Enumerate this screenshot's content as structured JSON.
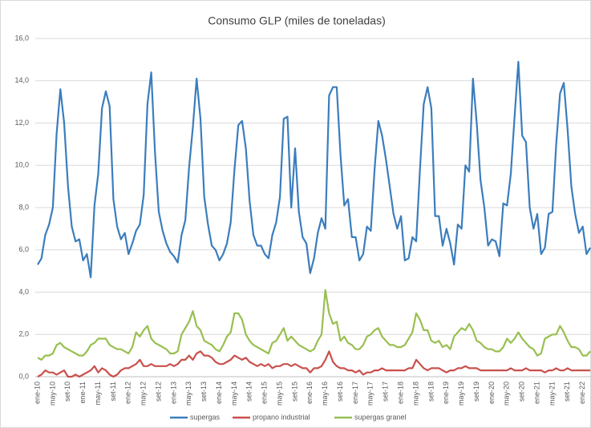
{
  "chart_data": {
    "type": "line",
    "title": "Consumo GLP (miles de toneladas)",
    "categories": [
      "ene-10",
      null,
      null,
      null,
      "may-10",
      null,
      null,
      null,
      "set-10",
      null,
      null,
      null,
      "ene-11",
      null,
      null,
      null,
      "may-11",
      null,
      null,
      null,
      "set-11",
      null,
      null,
      null,
      "ene-12",
      null,
      null,
      null,
      "may-12",
      null,
      null,
      null,
      "set-12",
      null,
      null,
      null,
      "ene-13",
      null,
      null,
      null,
      "may-13",
      null,
      null,
      null,
      "set-13",
      null,
      null,
      null,
      "ene-14",
      null,
      null,
      null,
      "may-14",
      null,
      null,
      null,
      "set-14",
      null,
      null,
      null,
      "ene-15",
      null,
      null,
      null,
      "may-15",
      null,
      null,
      null,
      "set-15",
      null,
      null,
      null,
      "ene-16",
      null,
      null,
      null,
      "may-16",
      null,
      null,
      null,
      "set-16",
      null,
      null,
      null,
      "ene-17",
      null,
      null,
      null,
      "may-17",
      null,
      null,
      null,
      "set-17",
      null,
      null,
      null,
      "ene-18",
      null,
      null,
      null,
      "may-18",
      null,
      null,
      null,
      "set-18",
      null,
      null,
      null,
      "ene-19",
      null,
      null,
      null,
      "may-19",
      null,
      null,
      null,
      "set-19",
      null,
      null,
      null,
      "ene-20",
      null,
      null,
      null,
      "may-20",
      null,
      null,
      null,
      "set-20",
      null,
      null,
      null,
      "ene-21",
      null,
      null,
      null,
      "may-21",
      null,
      null,
      null,
      "set-21",
      null,
      null,
      null,
      "ene-22",
      null,
      null
    ],
    "series": [
      {
        "name": "supergas",
        "color": "#3b7dbd",
        "values": [
          5.3,
          5.6,
          6.7,
          7.2,
          8.0,
          11.5,
          13.6,
          12.0,
          9.0,
          7.1,
          6.4,
          6.5,
          5.5,
          5.8,
          4.7,
          8.1,
          9.6,
          12.7,
          13.5,
          12.8,
          8.4,
          7.1,
          6.5,
          6.8,
          5.8,
          6.3,
          6.9,
          7.2,
          8.6,
          12.9,
          14.4,
          10.6,
          7.8,
          6.9,
          6.3,
          5.9,
          5.7,
          5.4,
          6.7,
          7.4,
          9.9,
          11.8,
          14.1,
          12.2,
          8.5,
          7.2,
          6.2,
          6.0,
          5.5,
          5.8,
          6.3,
          7.3,
          9.8,
          11.9,
          12.1,
          10.8,
          8.3,
          6.7,
          6.2,
          6.2,
          5.8,
          5.6,
          6.7,
          7.3,
          8.5,
          12.2,
          12.3,
          8.0,
          10.8,
          7.8,
          6.6,
          6.3,
          4.9,
          5.6,
          6.8,
          7.5,
          7.0,
          13.3,
          13.7,
          13.7,
          10.5,
          8.1,
          8.4,
          6.6,
          6.6,
          5.5,
          5.8,
          7.1,
          6.9,
          9.8,
          12.1,
          11.4,
          10.3,
          9.0,
          7.7,
          7.0,
          7.6,
          5.5,
          5.6,
          6.6,
          6.4,
          9.8,
          12.9,
          13.7,
          12.7,
          7.6,
          7.6,
          6.2,
          7.0,
          6.3,
          5.3,
          7.2,
          7.0,
          10.0,
          9.7,
          14.1,
          12.0,
          9.3,
          8.0,
          6.2,
          6.5,
          6.4,
          5.7,
          8.2,
          8.1,
          9.6,
          12.3,
          14.9,
          11.4,
          11.1,
          8.0,
          7.0,
          7.7,
          5.8,
          6.1,
          7.7,
          7.8,
          11.0,
          13.4,
          13.9,
          11.7,
          9.0,
          7.7,
          6.8,
          7.1,
          5.8,
          6.1
        ]
      },
      {
        "name": "propano industrial",
        "color": "#c9504c",
        "values": [
          0.0,
          0.1,
          0.3,
          0.2,
          0.2,
          0.1,
          0.2,
          0.3,
          0.0,
          0.0,
          0.1,
          0.0,
          0.1,
          0.2,
          0.3,
          0.5,
          0.2,
          0.4,
          0.3,
          0.1,
          0.0,
          0.1,
          0.3,
          0.4,
          0.4,
          0.5,
          0.6,
          0.8,
          0.5,
          0.5,
          0.6,
          0.5,
          0.5,
          0.5,
          0.5,
          0.6,
          0.5,
          0.6,
          0.8,
          0.8,
          1.0,
          0.8,
          1.1,
          1.2,
          1.0,
          1.0,
          0.9,
          0.7,
          0.6,
          0.6,
          0.7,
          0.8,
          1.0,
          0.9,
          0.8,
          0.9,
          0.7,
          0.6,
          0.5,
          0.6,
          0.5,
          0.6,
          0.4,
          0.5,
          0.5,
          0.6,
          0.6,
          0.5,
          0.6,
          0.5,
          0.4,
          0.4,
          0.2,
          0.4,
          0.4,
          0.5,
          0.8,
          1.2,
          0.7,
          0.5,
          0.4,
          0.4,
          0.3,
          0.3,
          0.2,
          0.3,
          0.1,
          0.2,
          0.2,
          0.3,
          0.3,
          0.4,
          0.3,
          0.3,
          0.3,
          0.3,
          0.3,
          0.3,
          0.4,
          0.4,
          0.8,
          0.6,
          0.4,
          0.3,
          0.4,
          0.4,
          0.4,
          0.3,
          0.2,
          0.3,
          0.3,
          0.4,
          0.4,
          0.5,
          0.4,
          0.4,
          0.4,
          0.3,
          0.3,
          0.3,
          0.3,
          0.3,
          0.3,
          0.3,
          0.3,
          0.4,
          0.3,
          0.3,
          0.3,
          0.4,
          0.3,
          0.3,
          0.3,
          0.3,
          0.2,
          0.3,
          0.3,
          0.4,
          0.3,
          0.3,
          0.4,
          0.3,
          0.3,
          0.3,
          0.3,
          0.3,
          0.3
        ]
      },
      {
        "name": "supergas granel",
        "color": "#98bf50",
        "values": [
          0.9,
          0.8,
          1.0,
          1.0,
          1.1,
          1.5,
          1.6,
          1.4,
          1.3,
          1.2,
          1.1,
          1.0,
          1.0,
          1.2,
          1.5,
          1.6,
          1.8,
          1.8,
          1.8,
          1.5,
          1.4,
          1.3,
          1.3,
          1.2,
          1.1,
          1.4,
          2.1,
          1.9,
          2.2,
          2.4,
          1.8,
          1.6,
          1.5,
          1.4,
          1.3,
          1.1,
          1.1,
          1.2,
          2.0,
          2.3,
          2.6,
          3.1,
          2.4,
          2.2,
          1.7,
          1.6,
          1.5,
          1.3,
          1.2,
          1.5,
          1.9,
          2.1,
          3.0,
          3.0,
          2.7,
          2.0,
          1.7,
          1.5,
          1.4,
          1.3,
          1.2,
          1.1,
          1.6,
          1.7,
          2.0,
          2.3,
          1.7,
          1.9,
          1.7,
          1.5,
          1.4,
          1.3,
          1.2,
          1.3,
          1.7,
          2.0,
          4.1,
          3.0,
          2.5,
          2.6,
          1.7,
          1.9,
          1.6,
          1.5,
          1.3,
          1.3,
          1.5,
          1.9,
          2.0,
          2.2,
          2.3,
          1.9,
          1.7,
          1.5,
          1.5,
          1.4,
          1.4,
          1.5,
          1.8,
          2.1,
          3.0,
          2.7,
          2.2,
          2.2,
          1.7,
          1.6,
          1.7,
          1.4,
          1.5,
          1.3,
          1.9,
          2.1,
          2.3,
          2.2,
          2.5,
          2.2,
          1.7,
          1.6,
          1.4,
          1.3,
          1.3,
          1.2,
          1.2,
          1.4,
          1.8,
          1.6,
          1.8,
          2.1,
          1.8,
          1.6,
          1.4,
          1.3,
          1.0,
          1.1,
          1.8,
          1.9,
          2.0,
          2.0,
          2.4,
          2.1,
          1.7,
          1.4,
          1.4,
          1.3,
          1.0,
          1.0,
          1.2
        ]
      }
    ],
    "ylim": [
      0,
      16
    ],
    "yticks": [
      {
        "value": 0,
        "label": "0,0"
      },
      {
        "value": 2,
        "label": "2,0"
      },
      {
        "value": 4,
        "label": "4,0"
      },
      {
        "value": 6,
        "label": "6,0"
      },
      {
        "value": 8,
        "label": "8,0"
      },
      {
        "value": 10,
        "label": "10,0"
      },
      {
        "value": 12,
        "label": "12,0"
      },
      {
        "value": 14,
        "label": "14,0"
      },
      {
        "value": 16,
        "label": "16,0"
      }
    ],
    "grid": true,
    "legend": "bottom"
  }
}
